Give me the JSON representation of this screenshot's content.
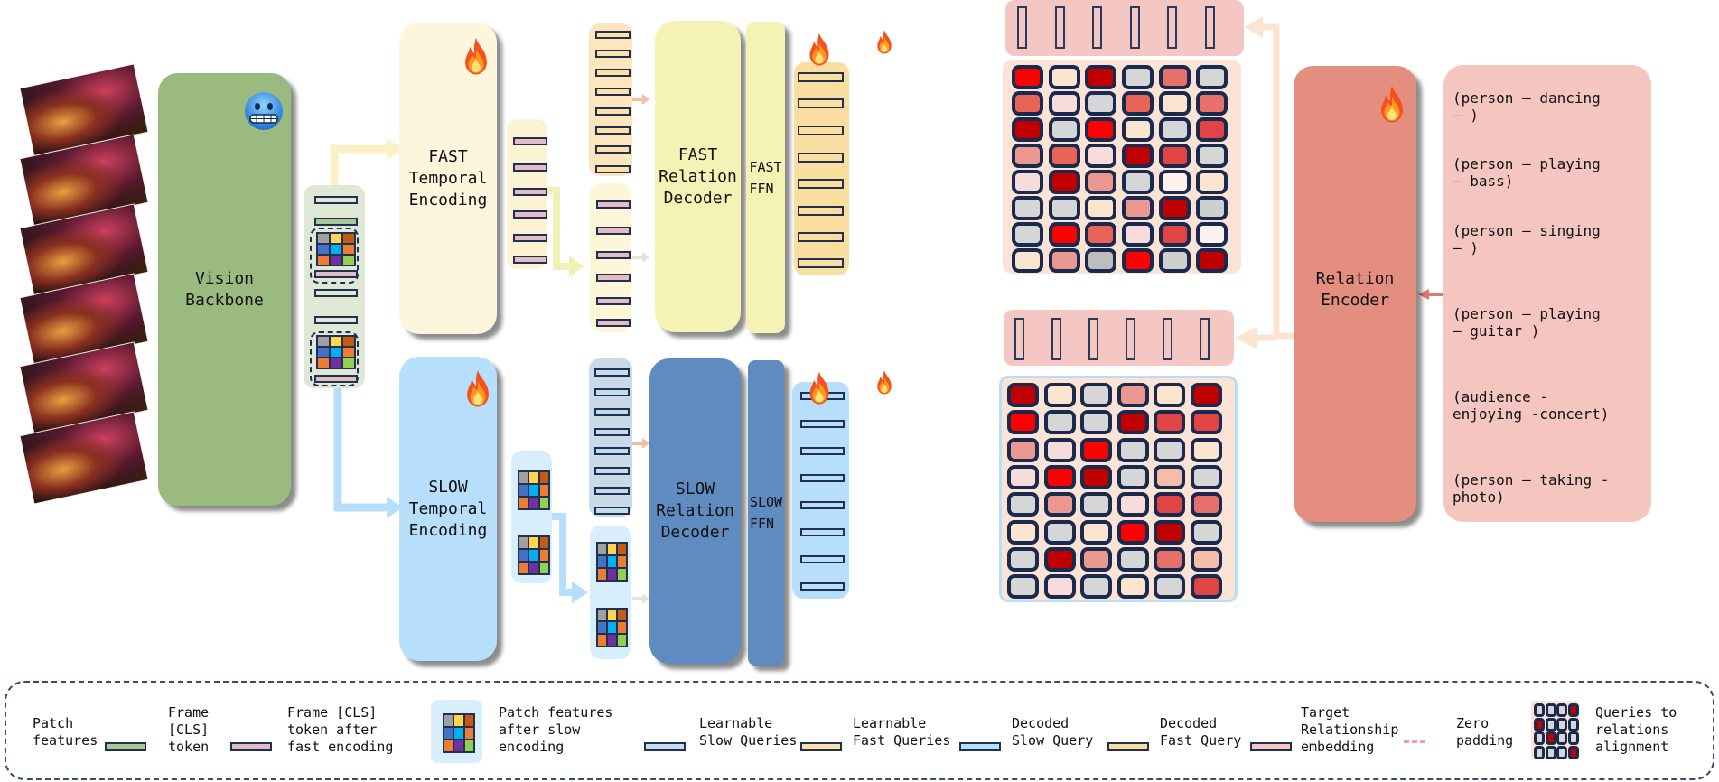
{
  "blocks": {
    "vision_backbone": "Vision\nBackbone",
    "fast_temporal": "FAST\nTemporal\nEncoding",
    "slow_temporal": "SLOW\nTemporal\nEncoding",
    "fast_decoder": "FAST\nRelation\nDecoder",
    "fast_ffn": "FAST\nFFN",
    "slow_decoder": "SLOW\nRelation\nDecoder",
    "slow_ffn": "SLOW\nFFN",
    "relation_encoder": "Relation\nEncoder"
  },
  "icons": {
    "frozen": "cold-face-icon",
    "trainable": "fire-icon"
  },
  "relations": [
    "(person – dancing\n– )",
    "(person – playing\n– bass)",
    "(person – singing\n– )",
    "(person – playing\n– guitar )",
    "(audience -\nenjoying -concert)",
    "(person – taking -\nphoto)"
  ],
  "colors": {
    "vision_backbone": "#9aba80",
    "fast": "#fdf6dc",
    "fast_decoder": "#f4f2b4",
    "slow": "#b7dffb",
    "slow_decoder": "#5f8bc0",
    "relation_encoder": "#e48e80",
    "relation_text": "#f5c6c0",
    "patch_grid": [
      "#a0a0a0",
      "#ffd54f",
      "#c55a11",
      "#4472c4",
      "#00b0f0",
      "#ed7d31",
      "#ed7d31",
      "#7030a0",
      "#92d050"
    ]
  },
  "fast_alignment_matrix": [
    [
      "#ff0000",
      "#fbe5cf",
      "#c00000",
      "#d6d6d6",
      "#e8706a",
      "#d6d6d6"
    ],
    [
      "#ea6455",
      "#f8dcdc",
      "#d6d6d6",
      "#ea6455",
      "#fbe5cf",
      "#e8706a"
    ],
    [
      "#c00000",
      "#d6d6d6",
      "#ff0000",
      "#fbe5cf",
      "#d6d6d6",
      "#e04444"
    ],
    [
      "#ea9890",
      "#ea6455",
      "#f8dcdc",
      "#c00000",
      "#e04444",
      "#d6d6d6"
    ],
    [
      "#f8dcdc",
      "#c00000",
      "#ea9890",
      "#d6d6d6",
      "#fdf1ee",
      "#fbe5cf"
    ],
    [
      "#d6d6d6",
      "#d6d6d6",
      "#fbe5cf",
      "#ea9890",
      "#c00000",
      "#cfcfcf"
    ],
    [
      "#d6d6d6",
      "#ff0000",
      "#ea6455",
      "#f8dcdc",
      "#e04444",
      "#fdf1ee"
    ],
    [
      "#fbe5cf",
      "#ea9890",
      "#bdbdbd",
      "#ff0000",
      "#cfcfcf",
      "#c00000"
    ]
  ],
  "slow_alignment_matrix": [
    [
      "#c00000",
      "#fbe5cf",
      "#d6d6d6",
      "#ea9890",
      "#fbe5cf",
      "#c00000"
    ],
    [
      "#ff0000",
      "#d6d6d6",
      "#d6d6d6",
      "#c00000",
      "#e04444",
      "#e04444"
    ],
    [
      "#ea9890",
      "#f8dcdc",
      "#ff0000",
      "#d6d6d6",
      "#d6d6d6",
      "#fbe5cf"
    ],
    [
      "#f8dcdc",
      "#ff0000",
      "#c00000",
      "#d6d6d6",
      "#f5bca8",
      "#d6d6d6"
    ],
    [
      "#d6d6d6",
      "#ea9890",
      "#d6d6d6",
      "#f8dcdc",
      "#e04444",
      "#e8706a"
    ],
    [
      "#fbe5cf",
      "#d6d6d6",
      "#fbe5cf",
      "#ff0000",
      "#c00000",
      "#d6d6d6"
    ],
    [
      "#d6d6d6",
      "#c00000",
      "#ea9890",
      "#d6d6d6",
      "#e8706a",
      "#f5bca8"
    ],
    [
      "#d6d6d6",
      "#f8dcdc",
      "#d6d6d6",
      "#fbe5cf",
      "#d6d6d6",
      "#e04444"
    ]
  ],
  "legend": [
    {
      "label": "Patch\nfeatures",
      "swatch": "#a9c99a"
    },
    {
      "label": "Frame\n[CLS]\ntoken",
      "swatch": "#e6bcc4"
    },
    {
      "label": "Frame [CLS]\ntoken after\nfast encoding",
      "swatch": "patch-grid"
    },
    {
      "label": "Patch features\nafter slow\n encoding",
      "swatch": "#c5dcef"
    },
    {
      "label": "Learnable\nSlow Queries",
      "swatch": "#fde1a8"
    },
    {
      "label": "Learnable\nFast Queries",
      "swatch": "#b7dffb"
    },
    {
      "label": "Decoded\nSlow Query",
      "swatch": "#f9dea0"
    },
    {
      "label": "Decoded\nFast Query",
      "swatch": "#f5c7c2"
    },
    {
      "label": "Target\nRelationship\nembedding",
      "swatch": "zero-padding"
    },
    {
      "label": "Zero\npadding",
      "swatch": "alignment"
    },
    {
      "label": "Queries to\nrelations\nalignment",
      "swatch": ""
    }
  ]
}
